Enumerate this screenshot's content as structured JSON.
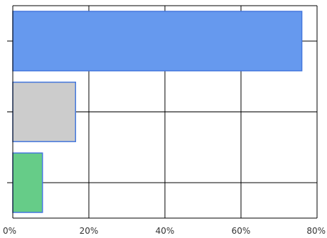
{
  "chart_data": {
    "type": "bar",
    "orientation": "horizontal",
    "title": "",
    "xlabel": "",
    "ylabel": "",
    "x_tick_labels": [
      "0%",
      "20%",
      "40%",
      "60%",
      "80%"
    ],
    "x_ticks": [
      0,
      20,
      40,
      60,
      80
    ],
    "xlim": [
      0,
      80
    ],
    "grid": true,
    "legend": "none",
    "bars": [
      {
        "value": 76,
        "color": "#6699ee",
        "stroke": "#4477dd"
      },
      {
        "value": 16.5,
        "color": "#cccccc",
        "stroke": "#4477dd"
      },
      {
        "value": 7.8,
        "color": "#66cc88",
        "stroke": "#4477dd"
      }
    ]
  }
}
